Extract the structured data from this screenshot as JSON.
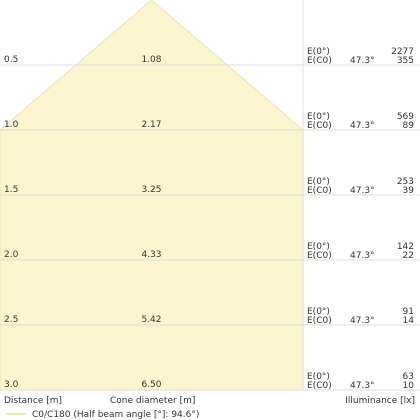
{
  "chart_data": {
    "type": "cone-diagram",
    "xlabel": "Cone diameter [m]",
    "ylabel": "Distance [m]",
    "side_label": "Illuminance [lx]",
    "legend": {
      "label": "C0/C180 (Half beam angle [°]: 94.6°)",
      "color": "#f5e7b5"
    },
    "colors": {
      "fill": "#fdf5cf",
      "edge": "#efe2b2",
      "grid": "#dcdcdc",
      "text": "#333333"
    },
    "rows": [
      {
        "distance": "0.5",
        "diameter": "1.08",
        "e0_label": "E(0°)",
        "ec0_label": "E(C0)",
        "angle": "47.3°",
        "e0": "2277",
        "ec0": "355"
      },
      {
        "distance": "1.0",
        "diameter": "2.17",
        "e0_label": "E(0°)",
        "ec0_label": "E(C0)",
        "angle": "47.3°",
        "e0": "569",
        "ec0": "89"
      },
      {
        "distance": "1.5",
        "diameter": "3.25",
        "e0_label": "E(0°)",
        "ec0_label": "E(C0)",
        "angle": "47.3°",
        "e0": "253",
        "ec0": "39"
      },
      {
        "distance": "2.0",
        "diameter": "4.33",
        "e0_label": "E(0°)",
        "ec0_label": "E(C0)",
        "angle": "47.3°",
        "e0": "142",
        "ec0": "22"
      },
      {
        "distance": "2.5",
        "diameter": "5.42",
        "e0_label": "E(0°)",
        "ec0_label": "E(C0)",
        "angle": "47.3°",
        "e0": "91",
        "ec0": "14"
      },
      {
        "distance": "3.0",
        "diameter": "6.50",
        "e0_label": "E(0°)",
        "ec0_label": "E(C0)",
        "angle": "47.3°",
        "e0": "63",
        "ec0": "10"
      }
    ]
  }
}
